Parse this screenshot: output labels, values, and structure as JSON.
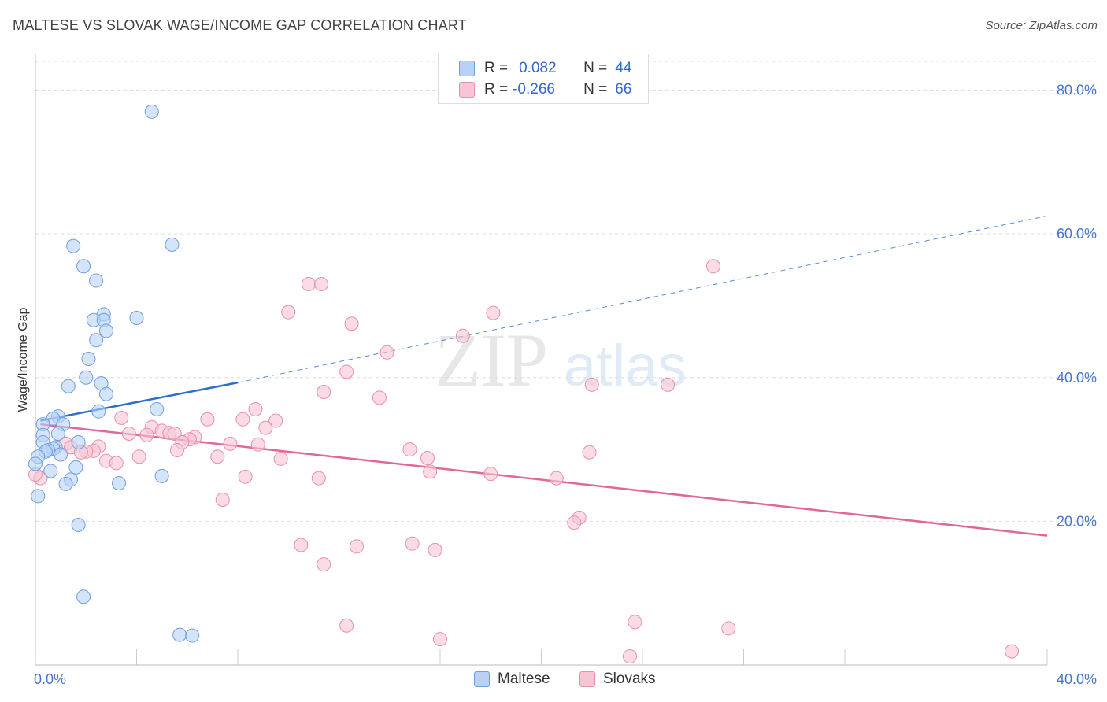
{
  "title": "MALTESE VS SLOVAK WAGE/INCOME GAP CORRELATION CHART",
  "source": "Source: ZipAtlas.com",
  "watermark": {
    "zip": "ZIP",
    "atlas": "atlas"
  },
  "legend": {
    "rows": [
      {
        "r_label": "R =",
        "r_value": "0.082",
        "n_label": "N =",
        "n_value": "44"
      },
      {
        "r_label": "R =",
        "r_value": "-0.266",
        "n_label": "N =",
        "n_value": "66"
      }
    ]
  },
  "bottom_legend": {
    "maltese": "Maltese",
    "slovaks": "Slovaks"
  },
  "colors": {
    "maltese_fill": "#b7d2f5",
    "maltese_stroke": "#6f9de0",
    "maltese_line": "#2e6fcc",
    "slovak_fill": "#f8c5d4",
    "slovak_stroke": "#e890ab",
    "slovak_line": "#e0679a",
    "tick_text": "#4477cc",
    "grid": "#dddddd"
  },
  "chart_data": {
    "type": "scatter",
    "title": "MALTESE VS SLOVAK WAGE/INCOME GAP CORRELATION CHART",
    "xlabel": "",
    "ylabel": "Wage/Income Gap",
    "xlim": [
      0,
      40
    ],
    "ylim": [
      0,
      84
    ],
    "x_tick_labels": [
      "0.0%",
      "40.0%"
    ],
    "y_ticks": [
      20,
      40,
      60,
      80
    ],
    "y_tick_labels": [
      "20.0%",
      "40.0%",
      "60.0%",
      "80.0%"
    ],
    "grid": true,
    "legend_position": "top-center",
    "series": [
      {
        "name": "Maltese",
        "r": 0.082,
        "n": 44,
        "trend": {
          "x0": 0.2,
          "y0": 34.0,
          "x1": 8.0,
          "y1": 39.3,
          "dashed_to_x": 40.0,
          "dashed_to_y": 62.5
        },
        "points": [
          [
            4.6,
            77.0
          ],
          [
            1.5,
            58.3
          ],
          [
            5.4,
            58.5
          ],
          [
            1.9,
            55.5
          ],
          [
            2.4,
            53.5
          ],
          [
            2.7,
            48.8
          ],
          [
            2.3,
            48.0
          ],
          [
            2.7,
            48.0
          ],
          [
            4.0,
            48.3
          ],
          [
            2.8,
            46.5
          ],
          [
            2.4,
            45.2
          ],
          [
            2.1,
            42.6
          ],
          [
            2.0,
            40.0
          ],
          [
            2.6,
            39.2
          ],
          [
            1.3,
            38.8
          ],
          [
            2.8,
            37.7
          ],
          [
            4.8,
            35.6
          ],
          [
            2.5,
            35.3
          ],
          [
            0.9,
            34.6
          ],
          [
            0.7,
            34.3
          ],
          [
            1.1,
            33.5
          ],
          [
            0.3,
            33.5
          ],
          [
            0.9,
            32.2
          ],
          [
            0.3,
            32.0
          ],
          [
            1.7,
            31.0
          ],
          [
            0.3,
            31.0
          ],
          [
            0.8,
            30.3
          ],
          [
            0.7,
            30.1
          ],
          [
            0.5,
            29.9
          ],
          [
            0.4,
            29.7
          ],
          [
            1.0,
            29.3
          ],
          [
            0.1,
            29.0
          ],
          [
            0.6,
            27.0
          ],
          [
            1.6,
            27.5
          ],
          [
            1.4,
            25.8
          ],
          [
            1.2,
            25.2
          ],
          [
            3.3,
            25.3
          ],
          [
            5.0,
            26.3
          ],
          [
            0.1,
            23.5
          ],
          [
            1.7,
            19.5
          ],
          [
            1.9,
            9.5
          ],
          [
            5.7,
            4.2
          ],
          [
            6.2,
            4.1
          ],
          [
            0.0,
            28.0
          ]
        ]
      },
      {
        "name": "Slovaks",
        "r": -0.266,
        "n": 66,
        "trend": {
          "x0": 0.2,
          "y0": 33.5,
          "x1": 40.0,
          "y1": 18.0
        },
        "points": [
          [
            26.8,
            55.5
          ],
          [
            10.8,
            53.0
          ],
          [
            11.3,
            53.0
          ],
          [
            10.0,
            49.1
          ],
          [
            18.1,
            49.0
          ],
          [
            12.5,
            47.5
          ],
          [
            16.9,
            45.8
          ],
          [
            13.9,
            43.5
          ],
          [
            22.0,
            39.0
          ],
          [
            25.0,
            39.0
          ],
          [
            12.3,
            40.8
          ],
          [
            11.4,
            38.0
          ],
          [
            13.6,
            37.2
          ],
          [
            8.7,
            35.6
          ],
          [
            3.4,
            34.4
          ],
          [
            6.8,
            34.2
          ],
          [
            8.2,
            34.2
          ],
          [
            9.5,
            34.0
          ],
          [
            4.6,
            33.1
          ],
          [
            9.1,
            33.0
          ],
          [
            5.0,
            32.6
          ],
          [
            5.3,
            32.3
          ],
          [
            3.7,
            32.2
          ],
          [
            5.5,
            32.2
          ],
          [
            4.4,
            32.0
          ],
          [
            6.3,
            31.7
          ],
          [
            6.1,
            31.4
          ],
          [
            5.8,
            31.0
          ],
          [
            1.2,
            30.8
          ],
          [
            7.7,
            30.8
          ],
          [
            8.8,
            30.7
          ],
          [
            2.5,
            30.4
          ],
          [
            14.8,
            30.0
          ],
          [
            1.4,
            30.3
          ],
          [
            2.3,
            29.8
          ],
          [
            2.0,
            29.7
          ],
          [
            5.6,
            29.9
          ],
          [
            1.8,
            29.6
          ],
          [
            21.9,
            29.6
          ],
          [
            4.1,
            29.0
          ],
          [
            7.2,
            29.0
          ],
          [
            9.7,
            28.7
          ],
          [
            15.5,
            28.8
          ],
          [
            2.8,
            28.4
          ],
          [
            3.2,
            28.1
          ],
          [
            15.6,
            26.9
          ],
          [
            18.0,
            26.6
          ],
          [
            8.3,
            26.2
          ],
          [
            11.2,
            26.0
          ],
          [
            20.6,
            26.0
          ],
          [
            0.2,
            26.0
          ],
          [
            7.4,
            23.0
          ],
          [
            21.5,
            20.5
          ],
          [
            21.3,
            19.8
          ],
          [
            10.5,
            16.7
          ],
          [
            12.7,
            16.5
          ],
          [
            14.9,
            16.9
          ],
          [
            15.8,
            16.0
          ],
          [
            11.4,
            14.0
          ],
          [
            12.3,
            5.5
          ],
          [
            23.7,
            6.0
          ],
          [
            27.4,
            5.1
          ],
          [
            16.0,
            3.6
          ],
          [
            23.5,
            1.2
          ],
          [
            38.6,
            1.9
          ],
          [
            0.0,
            26.5
          ]
        ]
      }
    ]
  }
}
